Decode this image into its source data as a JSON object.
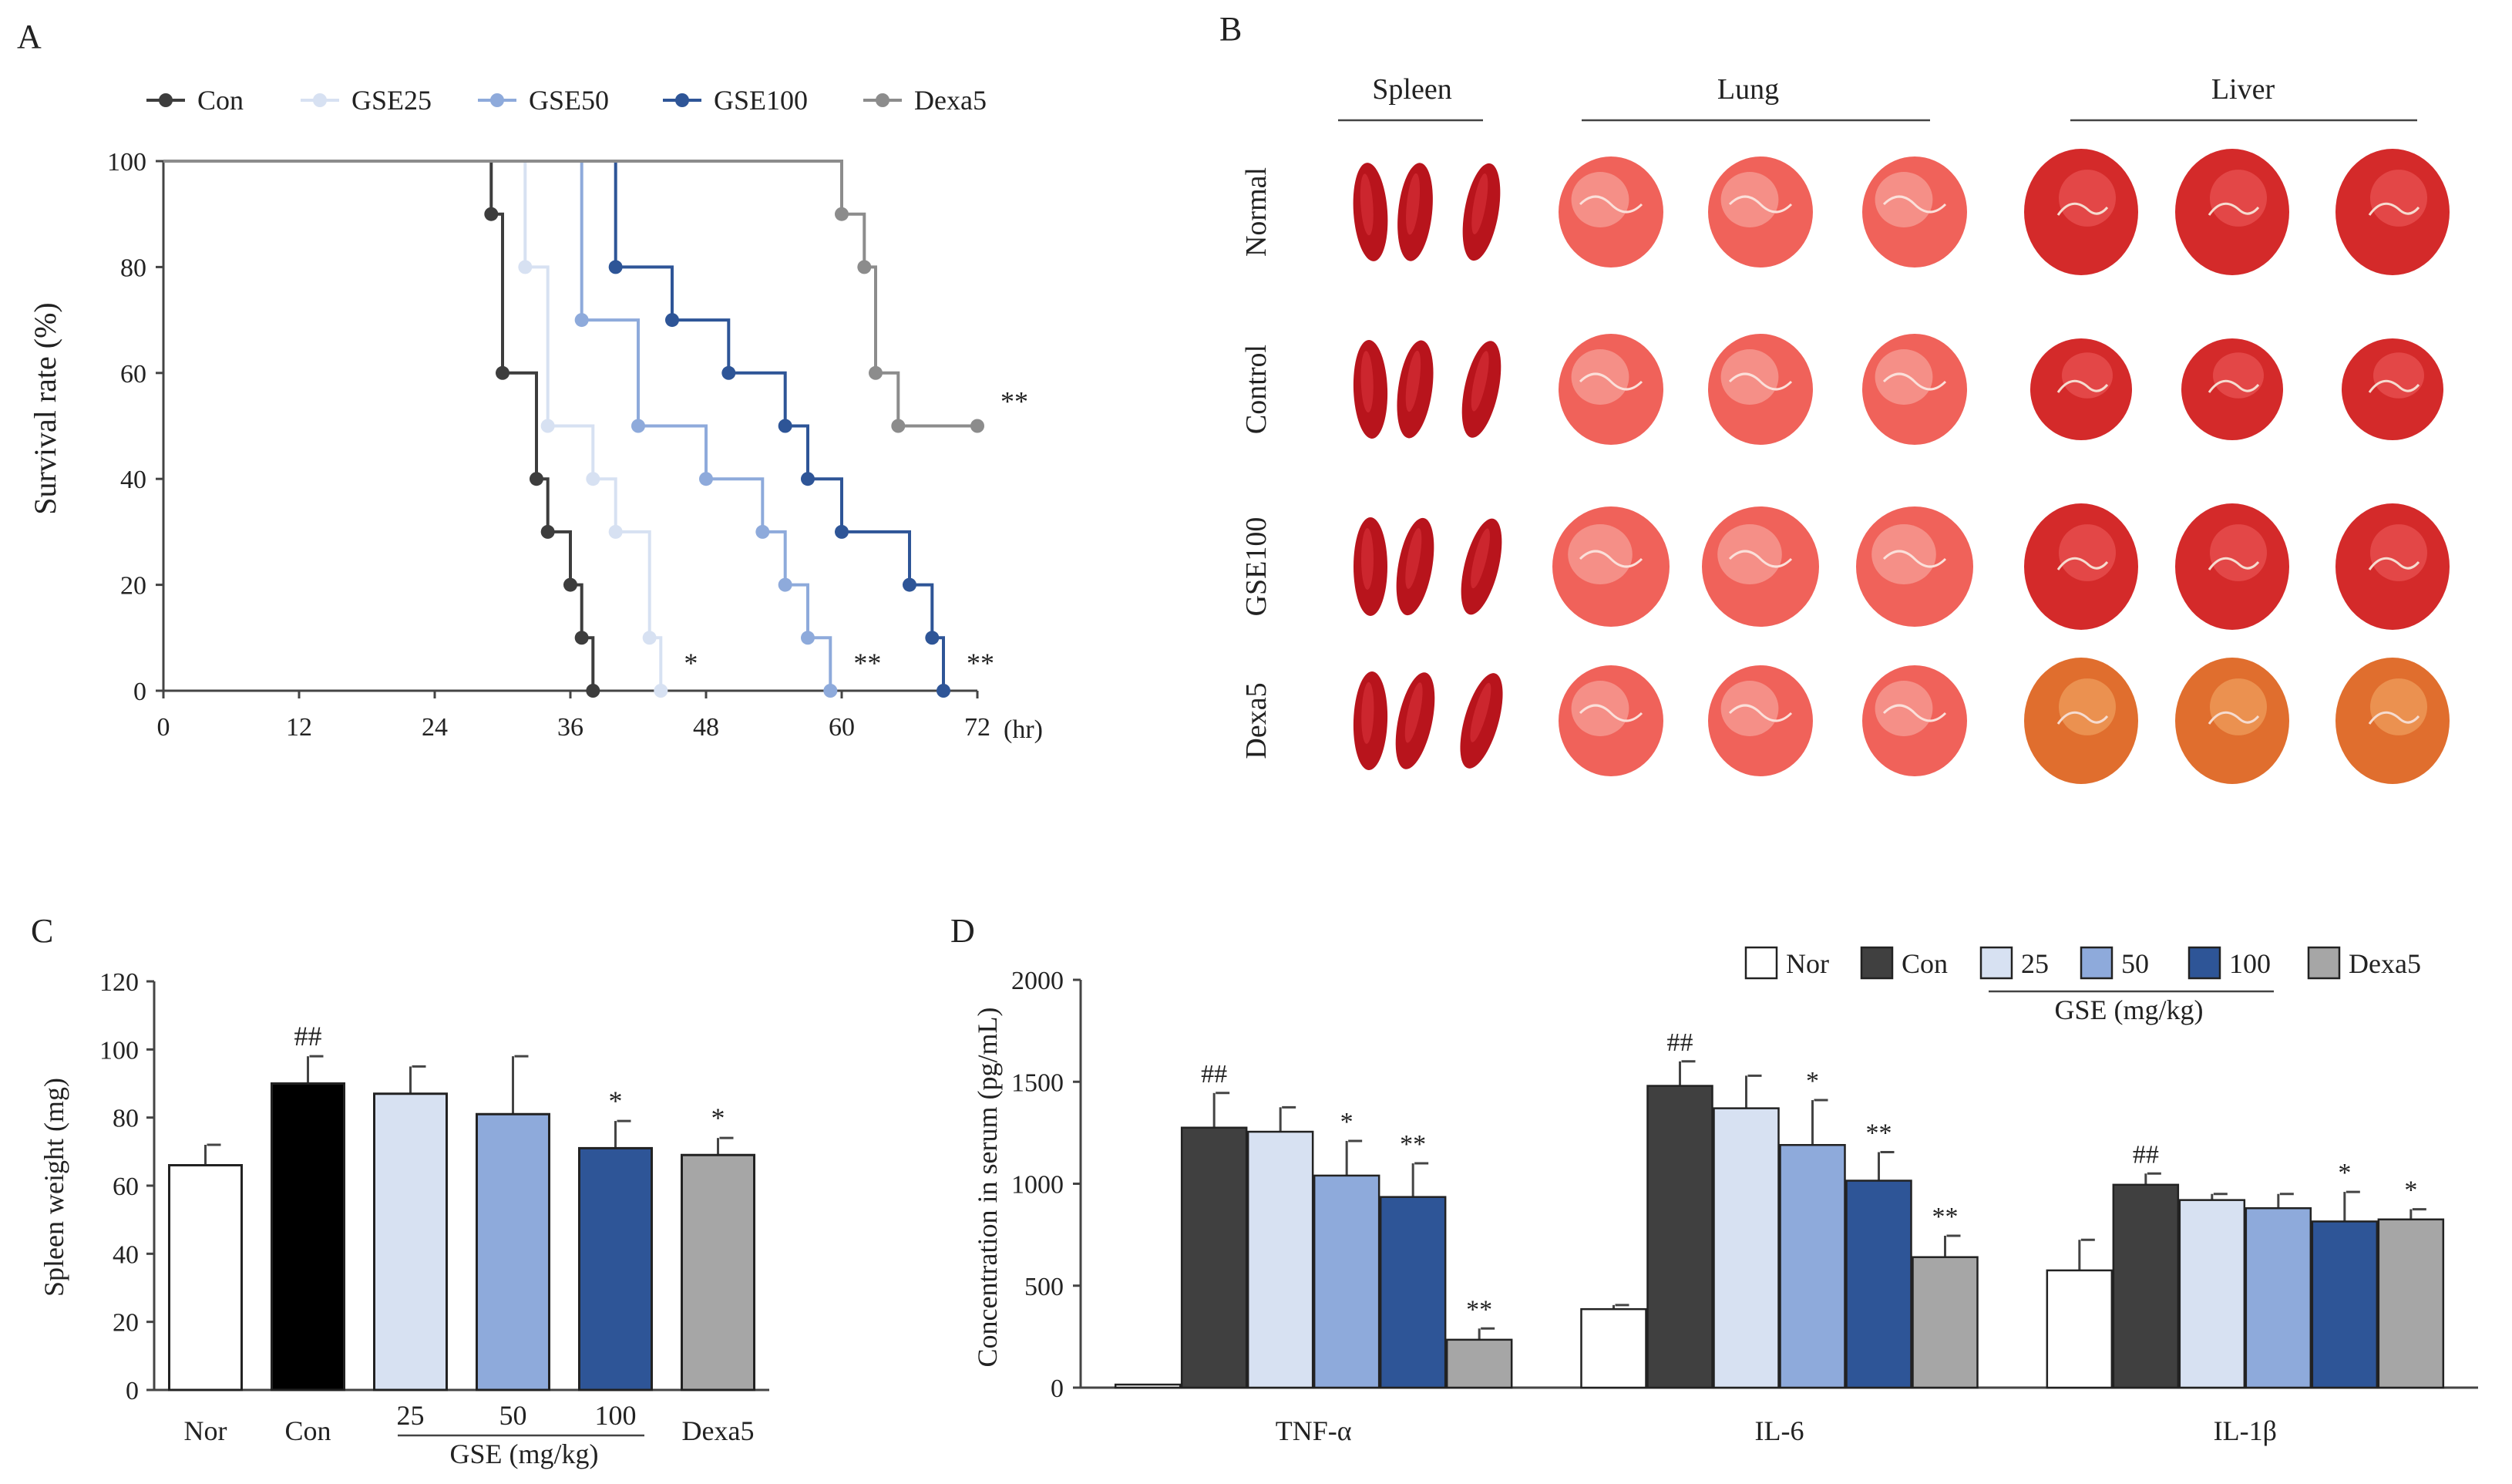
{
  "panel_labels": {
    "a": "A",
    "b": "B",
    "c": "C",
    "d": "D"
  },
  "colors": {
    "con": "#3d3d3d",
    "gse25": "#d7e1f2",
    "gse50": "#8eaadb",
    "gse100": "#2e5597",
    "dexa5": "#8c8c8c",
    "nor_bar": "#ffffff",
    "con_bar_c": "#000000",
    "con_bar_d": "#404040",
    "dexa_bar": "#a6a6a6",
    "axis": "#444444"
  },
  "chart_data": [
    {
      "panel": "A",
      "type": "line",
      "step": true,
      "xlabel": "",
      "x_unit": "(hr)",
      "ylabel": "Survival rate (%)",
      "xlim": [
        0,
        72
      ],
      "ylim": [
        0,
        100
      ],
      "xticks": [
        "0",
        "12",
        "24",
        "36",
        "48",
        "60",
        "72"
      ],
      "yticks": [
        "0",
        "20",
        "40",
        "60",
        "80",
        "100"
      ],
      "legend": [
        "Con",
        "GSE25",
        "GSE50",
        "GSE100",
        "Dexa5"
      ],
      "series": [
        {
          "name": "Con",
          "color": "#3d3d3d",
          "points": [
            [
              0,
              100
            ],
            [
              29,
              100
            ],
            [
              29,
              90
            ],
            [
              30,
              90
            ],
            [
              30,
              60
            ],
            [
              33,
              60
            ],
            [
              33,
              40
            ],
            [
              34,
              40
            ],
            [
              34,
              30
            ],
            [
              36,
              30
            ],
            [
              36,
              20
            ],
            [
              37,
              20
            ],
            [
              37,
              10
            ],
            [
              38,
              10
            ],
            [
              38,
              0
            ]
          ]
        },
        {
          "name": "GSE25",
          "color": "#d7e1f2",
          "points": [
            [
              0,
              100
            ],
            [
              32,
              100
            ],
            [
              32,
              80
            ],
            [
              34,
              80
            ],
            [
              34,
              50
            ],
            [
              38,
              50
            ],
            [
              38,
              40
            ],
            [
              40,
              40
            ],
            [
              40,
              30
            ],
            [
              43,
              30
            ],
            [
              43,
              10
            ],
            [
              44,
              10
            ],
            [
              44,
              0
            ]
          ],
          "sig": "*"
        },
        {
          "name": "GSE50",
          "color": "#8eaadb",
          "points": [
            [
              0,
              100
            ],
            [
              37,
              100
            ],
            [
              37,
              70
            ],
            [
              42,
              70
            ],
            [
              42,
              50
            ],
            [
              48,
              50
            ],
            [
              48,
              40
            ],
            [
              53,
              40
            ],
            [
              53,
              30
            ],
            [
              55,
              30
            ],
            [
              55,
              20
            ],
            [
              57,
              20
            ],
            [
              57,
              10
            ],
            [
              59,
              10
            ],
            [
              59,
              0
            ]
          ],
          "sig": "**"
        },
        {
          "name": "GSE100",
          "color": "#2e5597",
          "points": [
            [
              0,
              100
            ],
            [
              40,
              100
            ],
            [
              40,
              80
            ],
            [
              45,
              80
            ],
            [
              45,
              70
            ],
            [
              50,
              70
            ],
            [
              50,
              60
            ],
            [
              55,
              60
            ],
            [
              55,
              50
            ],
            [
              57,
              50
            ],
            [
              57,
              40
            ],
            [
              60,
              40
            ],
            [
              60,
              30
            ],
            [
              66,
              30
            ],
            [
              66,
              20
            ],
            [
              68,
              20
            ],
            [
              68,
              10
            ],
            [
              69,
              10
            ],
            [
              69,
              0
            ]
          ],
          "sig": "**"
        },
        {
          "name": "Dexa5",
          "color": "#8c8c8c",
          "points": [
            [
              0,
              100
            ],
            [
              60,
              100
            ],
            [
              60,
              90
            ],
            [
              62,
              90
            ],
            [
              62,
              80
            ],
            [
              63,
              80
            ],
            [
              63,
              60
            ],
            [
              65,
              60
            ],
            [
              65,
              50
            ],
            [
              72,
              50
            ]
          ],
          "sig": "**"
        }
      ]
    },
    {
      "panel": "C",
      "type": "bar",
      "ylabel": "Spleen weight (mg)",
      "ylim": [
        0,
        120
      ],
      "yticks": [
        "0",
        "20",
        "40",
        "60",
        "80",
        "100",
        "120"
      ],
      "categories": [
        "Nor",
        "Con",
        "25",
        "50",
        "100",
        "Dexa5"
      ],
      "group_label": "GSE (mg/kg)",
      "values": [
        66,
        90,
        87,
        81,
        71,
        69
      ],
      "errors": [
        6,
        8,
        8,
        17,
        8,
        5
      ],
      "annotations": [
        "",
        "##",
        "",
        "",
        "*",
        "*"
      ],
      "colors": [
        "#ffffff",
        "#000000",
        "#d7e1f2",
        "#8eaadb",
        "#2e5597",
        "#a6a6a6"
      ]
    },
    {
      "panel": "D",
      "type": "bar",
      "ylabel": "Concentration in serum (pg/mL)",
      "ylim": [
        0,
        2000
      ],
      "yticks": [
        "0",
        "500",
        "1000",
        "1500",
        "2000"
      ],
      "categories": [
        "TNF-α",
        "IL-6",
        "IL-1β"
      ],
      "legend": [
        "Nor",
        "Con",
        "25",
        "50",
        "100",
        "Dexa5"
      ],
      "legend_group_label": "GSE (mg/kg)",
      "colors": [
        "#ffffff",
        "#404040",
        "#d7e1f2",
        "#8eaadb",
        "#2e5597",
        "#a6a6a6"
      ],
      "series": [
        {
          "name": "Nor",
          "values": [
            15,
            385,
            575
          ],
          "errors": [
            0,
            20,
            150
          ],
          "annotations": [
            "",
            "",
            ""
          ]
        },
        {
          "name": "Con",
          "values": [
            1275,
            1480,
            995
          ],
          "errors": [
            170,
            120,
            55
          ],
          "annotations": [
            "##",
            "##",
            "##"
          ]
        },
        {
          "name": "25",
          "values": [
            1255,
            1370,
            920
          ],
          "errors": [
            120,
            160,
            30
          ],
          "annotations": [
            "",
            "",
            ""
          ]
        },
        {
          "name": "50",
          "values": [
            1040,
            1190,
            880
          ],
          "errors": [
            170,
            220,
            70
          ],
          "annotations": [
            "*",
            "*",
            ""
          ]
        },
        {
          "name": "100",
          "values": [
            935,
            1015,
            815
          ],
          "errors": [
            165,
            140,
            145
          ],
          "annotations": [
            "**",
            "**",
            "*"
          ]
        },
        {
          "name": "Dexa5",
          "values": [
            235,
            640,
            825
          ],
          "errors": [
            55,
            105,
            50
          ],
          "annotations": [
            "**",
            "**",
            "*"
          ]
        }
      ]
    }
  ],
  "panel_b": {
    "columns": [
      "Spleen",
      "Lung",
      "Liver"
    ],
    "rows": [
      "Normal",
      "Control",
      "GSE100",
      "Dexa5"
    ]
  }
}
